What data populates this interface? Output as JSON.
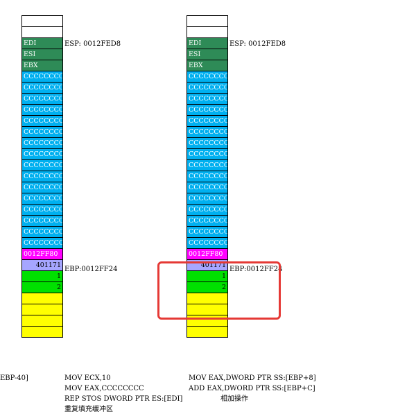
{
  "stacks": [
    {
      "cells": [
        {
          "label": "",
          "color": "white"
        },
        {
          "label": "",
          "color": "white"
        },
        {
          "label": "EDI",
          "color": "green"
        },
        {
          "label": "ESI",
          "color": "green"
        },
        {
          "label": "EBX",
          "color": "green"
        },
        {
          "label": "CCCCCCCC",
          "color": "cyan"
        },
        {
          "label": "CCCCCCCC",
          "color": "cyan"
        },
        {
          "label": "CCCCCCCC",
          "color": "cyan"
        },
        {
          "label": "CCCCCCCC",
          "color": "cyan"
        },
        {
          "label": "CCCCCCCC",
          "color": "cyan"
        },
        {
          "label": "CCCCCCCC",
          "color": "cyan"
        },
        {
          "label": "CCCCCCCC",
          "color": "cyan"
        },
        {
          "label": "CCCCCCCC",
          "color": "cyan"
        },
        {
          "label": "CCCCCCCC",
          "color": "cyan"
        },
        {
          "label": "CCCCCCCC",
          "color": "cyan"
        },
        {
          "label": "CCCCCCCC",
          "color": "cyan"
        },
        {
          "label": "CCCCCCCC",
          "color": "cyan"
        },
        {
          "label": "CCCCCCCC",
          "color": "cyan"
        },
        {
          "label": "CCCCCCCC",
          "color": "cyan"
        },
        {
          "label": "CCCCCCCC",
          "color": "cyan"
        },
        {
          "label": "CCCCCCCC",
          "color": "cyan"
        },
        {
          "label": "0012FF80",
          "color": "magenta"
        },
        {
          "label": "401171",
          "color": "lav"
        },
        {
          "label": "1",
          "color": "lime"
        },
        {
          "label": "2",
          "color": "lime"
        },
        {
          "label": "",
          "color": "yellow"
        },
        {
          "label": "",
          "color": "yellow"
        },
        {
          "label": "",
          "color": "yellow"
        },
        {
          "label": "",
          "color": "yellow"
        }
      ],
      "esp_note": "ESP: 0012FED8",
      "ebp_note": "EBP:0012FF24"
    },
    {
      "cells": [
        {
          "label": "",
          "color": "white"
        },
        {
          "label": "",
          "color": "white"
        },
        {
          "label": "EDI",
          "color": "green"
        },
        {
          "label": "ESI",
          "color": "green"
        },
        {
          "label": "EBX",
          "color": "green"
        },
        {
          "label": "CCCCCCCC",
          "color": "cyan"
        },
        {
          "label": "CCCCCCCC",
          "color": "cyan"
        },
        {
          "label": "CCCCCCCC",
          "color": "cyan"
        },
        {
          "label": "CCCCCCCC",
          "color": "cyan"
        },
        {
          "label": "CCCCCCCC",
          "color": "cyan"
        },
        {
          "label": "CCCCCCCC",
          "color": "cyan"
        },
        {
          "label": "CCCCCCCC",
          "color": "cyan"
        },
        {
          "label": "CCCCCCCC",
          "color": "cyan"
        },
        {
          "label": "CCCCCCCC",
          "color": "cyan"
        },
        {
          "label": "CCCCCCCC",
          "color": "cyan"
        },
        {
          "label": "CCCCCCCC",
          "color": "cyan"
        },
        {
          "label": "CCCCCCCC",
          "color": "cyan"
        },
        {
          "label": "CCCCCCCC",
          "color": "cyan"
        },
        {
          "label": "CCCCCCCC",
          "color": "cyan"
        },
        {
          "label": "CCCCCCCC",
          "color": "cyan"
        },
        {
          "label": "CCCCCCCC",
          "color": "cyan"
        },
        {
          "label": "0012FF80",
          "color": "magenta"
        },
        {
          "label": "401171",
          "color": "lav"
        },
        {
          "label": "1",
          "color": "lime"
        },
        {
          "label": "2",
          "color": "lime"
        },
        {
          "label": "",
          "color": "yellow"
        },
        {
          "label": "",
          "color": "yellow"
        },
        {
          "label": "",
          "color": "yellow"
        },
        {
          "label": "",
          "color": "yellow"
        }
      ],
      "esp_note": "ESP: 0012FED8",
      "ebp_note": "EBP:0012FF24"
    }
  ],
  "code": {
    "fragment": "EBP-40]",
    "col1": [
      "MOV ECX,10",
      "MOV EAX,CCCCCCCC",
      "REP STOS DWORD PTR ES:[EDI]",
      "重复填充缓冲区"
    ],
    "col2": [
      "MOV EAX,DWORD PTR SS:[EBP+8]",
      "ADD EAX,DWORD PTR SS:[EBP+C]"
    ],
    "col2_comment": "相加操作"
  },
  "colors": {
    "green": "#2e8b57",
    "cyan": "#00b0f0",
    "magenta": "#ff00ff",
    "lavender": "#a6a6ff",
    "lime": "#00e000",
    "yellow": "#ffff00",
    "highlight": "#e53935"
  }
}
